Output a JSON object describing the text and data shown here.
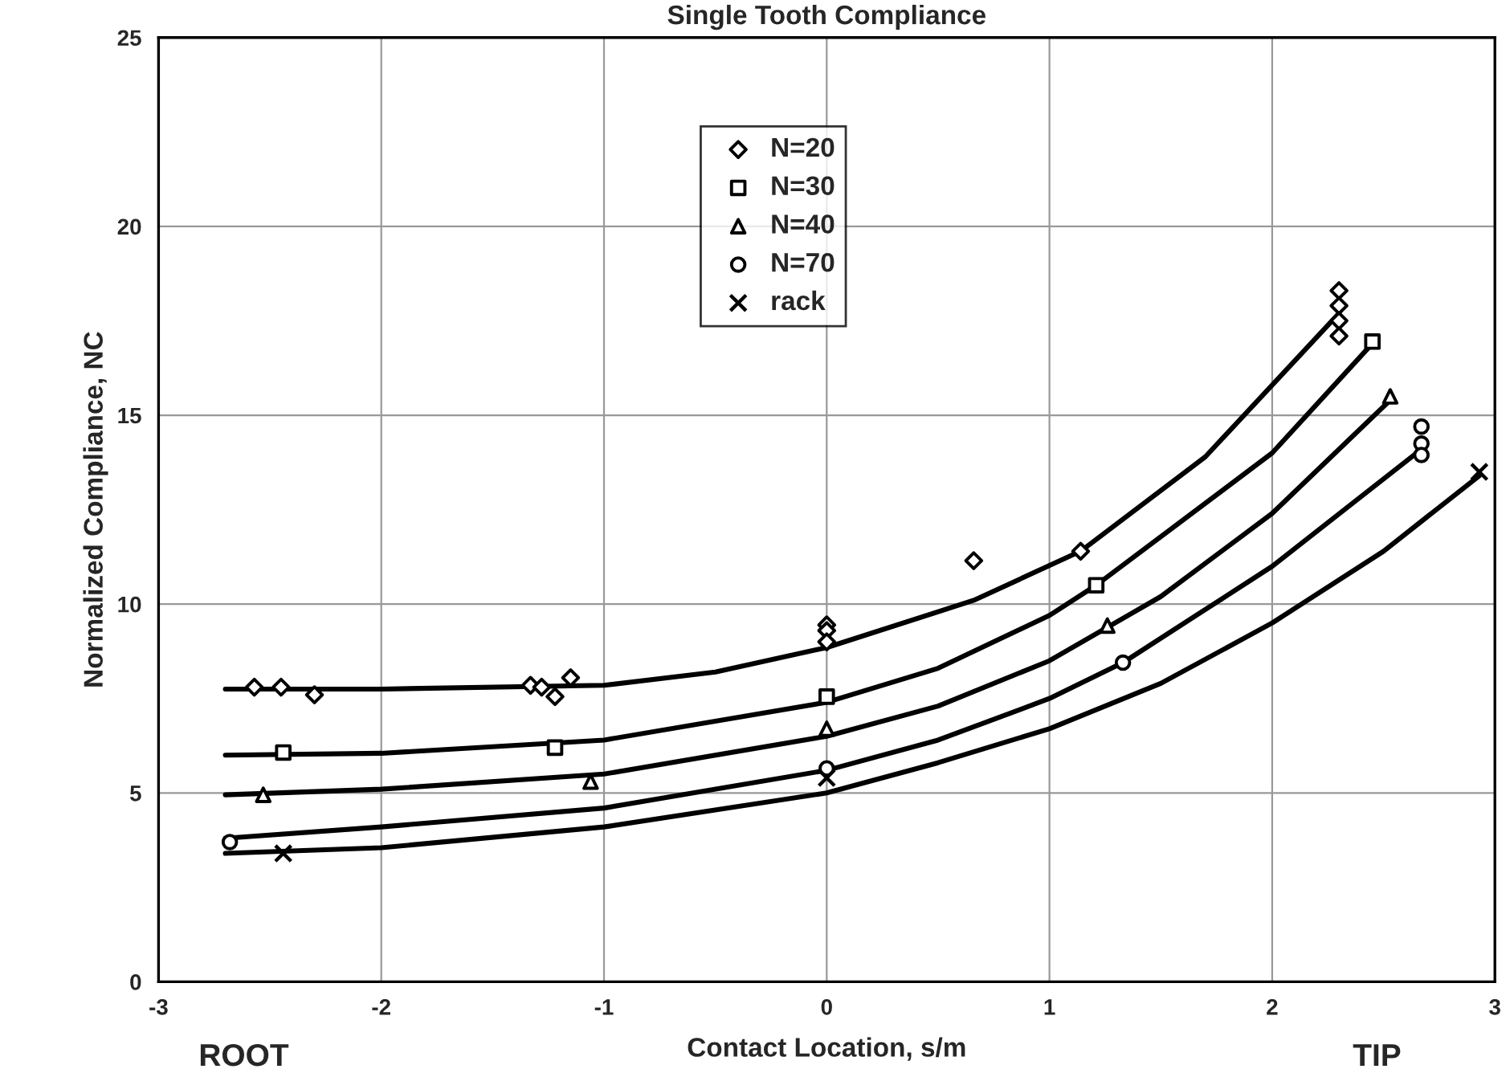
{
  "chart_data": {
    "type": "scatter",
    "title": "Single Tooth Compliance",
    "xlabel": "Contact Location, s/m",
    "ylabel": "Normalized Compliance, NC",
    "annotations": [
      "ROOT",
      "TIP"
    ],
    "xlim": [
      -3,
      3
    ],
    "xticks": [
      -3,
      -2,
      -1,
      0,
      1,
      2,
      3
    ],
    "ylim": [
      0,
      25
    ],
    "yticks": [
      0,
      5,
      10,
      15,
      20,
      25
    ],
    "grid": true,
    "legend": "top",
    "series": [
      {
        "name": "N=20",
        "marker": "diamond",
        "color": "#000000",
        "x": [
          -2.57,
          -2.45,
          -2.3,
          -1.33,
          -1.28,
          -1.22,
          -1.15,
          0,
          0,
          0,
          0.66,
          1.14,
          2.3,
          2.3,
          2.3,
          2.3
        ],
        "values": [
          7.8,
          7.8,
          7.6,
          7.85,
          7.8,
          7.55,
          8.05,
          9.45,
          9.3,
          9.0,
          11.15,
          11.4,
          18.3,
          17.9,
          17.5,
          17.1
        ]
      },
      {
        "name": "N=30",
        "marker": "square",
        "color": "#000000",
        "x": [
          -2.44,
          -1.22,
          0,
          1.21,
          2.45
        ],
        "values": [
          6.07,
          6.2,
          7.55,
          10.5,
          16.95
        ]
      },
      {
        "name": "N=40",
        "marker": "triangle",
        "color": "#000000",
        "x": [
          -2.53,
          -1.06,
          0,
          1.26,
          2.53
        ],
        "values": [
          4.95,
          5.3,
          6.7,
          9.43,
          15.5
        ]
      },
      {
        "name": "N=70",
        "marker": "circle",
        "color": "#000000",
        "x": [
          -2.68,
          0,
          1.33,
          2.67,
          2.67,
          2.67
        ],
        "values": [
          3.7,
          5.65,
          8.45,
          14.7,
          14.25,
          13.95
        ]
      },
      {
        "name": "rack",
        "marker": "cross",
        "color": "#000000",
        "x": [
          -2.44,
          0,
          2.93
        ],
        "values": [
          3.4,
          5.4,
          13.5
        ]
      },
      {
        "type": "line",
        "color": "#000000",
        "x": [
          -2.7,
          -2,
          -1,
          -0.5,
          0,
          0.66,
          1.14,
          1.7,
          2.3
        ],
        "values": [
          7.75,
          7.75,
          7.85,
          8.2,
          8.85,
          10.1,
          11.4,
          13.9,
          17.7
        ]
      },
      {
        "type": "line",
        "color": "#000000",
        "x": [
          -2.7,
          -2,
          -1,
          0,
          0.5,
          1,
          1.21,
          2,
          2.45
        ],
        "values": [
          6.0,
          6.05,
          6.4,
          7.4,
          8.3,
          9.7,
          10.5,
          14.0,
          16.9
        ]
      },
      {
        "type": "line",
        "color": "#000000",
        "x": [
          -2.7,
          -2,
          -1,
          0,
          0.5,
          1,
          1.5,
          2,
          2.53
        ],
        "values": [
          4.95,
          5.1,
          5.5,
          6.5,
          7.3,
          8.5,
          10.2,
          12.4,
          15.4
        ]
      },
      {
        "type": "line",
        "color": "#000000",
        "x": [
          -2.7,
          -2,
          -1,
          0,
          0.5,
          1,
          1.33,
          2,
          2.67
        ],
        "values": [
          3.8,
          4.1,
          4.6,
          5.6,
          6.4,
          7.5,
          8.45,
          11.0,
          14.1
        ]
      },
      {
        "type": "line",
        "color": "#000000",
        "x": [
          -2.7,
          -2,
          -1,
          0,
          0.5,
          1,
          1.5,
          2,
          2.5,
          2.93
        ],
        "values": [
          3.4,
          3.55,
          4.1,
          5.0,
          5.8,
          6.7,
          7.9,
          9.5,
          11.4,
          13.4
        ]
      }
    ]
  }
}
